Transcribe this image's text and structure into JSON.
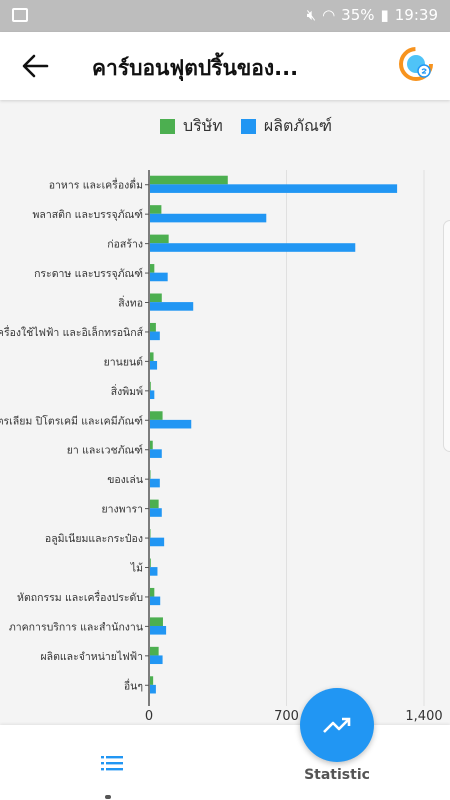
{
  "status_bar": {
    "battery": "35%",
    "time": "19:39"
  },
  "app_bar": {
    "title": "คาร์บอนฟุตปริ้นของ..."
  },
  "legend": [
    {
      "label": "บริษัท",
      "color": "#4caf50"
    },
    {
      "label": "ผลิตภัณฑ์",
      "color": "#2196f3"
    }
  ],
  "chart_data": {
    "type": "bar",
    "orientation": "horizontal",
    "categories": [
      "อาหาร และเครื่องดื่ม",
      "พลาสติก และบรรจุภัณฑ์",
      "ก่อสร้าง",
      "กระดาษ และบรรจุภัณฑ์",
      "สิ่งทอ",
      "เครื่องใช้ไฟฟ้า และอิเล็กทรอนิกส์",
      "ยานยนต์",
      "สิ่งพิมพ์",
      "ปิโตรเลียม ปิโตรเคมี และเคมีภัณฑ์",
      "ยา และเวชภัณฑ์",
      "ของเล่น",
      "ยางพารา",
      "อลูมิเนียมและกระป๋อง",
      "ไม้",
      "หัตถกรรม และเครื่องประดับ",
      "ภาคการบริการ และสำนักงาน",
      "ผลิตและจำหน่ายไฟฟ้า",
      "อื่นๆ"
    ],
    "series": [
      {
        "name": "บริษัท",
        "color": "#4caf50",
        "values": [
          396,
          58,
          95,
          22,
          60,
          30,
          18,
          4,
          64,
          14,
          2,
          44,
          2,
          4,
          22,
          66,
          44,
          16
        ]
      },
      {
        "name": "ผลิตภัณฑ์",
        "color": "#2196f3",
        "values": [
          1258,
          592,
          1045,
          90,
          220,
          50,
          36,
          22,
          210,
          60,
          50,
          60,
          72,
          38,
          52,
          82,
          64,
          30
        ]
      }
    ],
    "xlim": [
      0,
      1400
    ],
    "xticks": [
      "0",
      "700",
      "1,400"
    ],
    "grid": true,
    "legend_position": "top"
  },
  "bottom_nav": {
    "fab_label": "Statistic"
  }
}
